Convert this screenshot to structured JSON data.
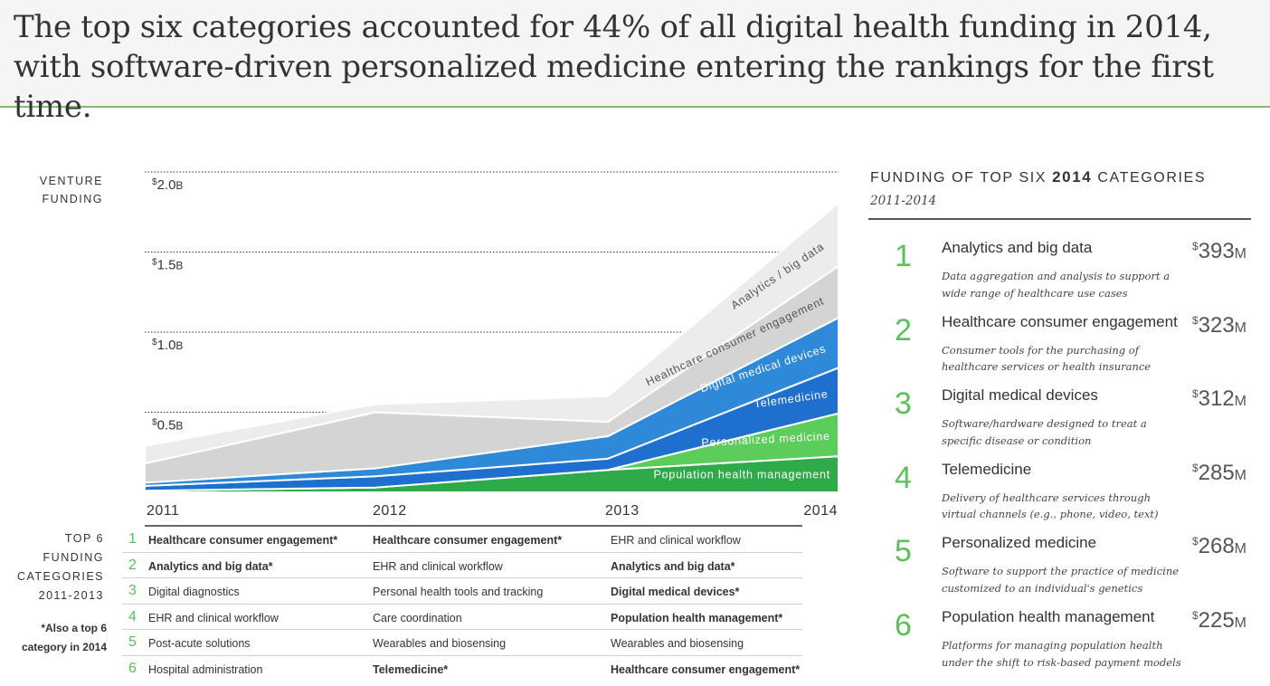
{
  "header": {
    "title": "The top six categories accounted for 44% of all digital health funding in 2014, with software-driven personalized medicine entering the rankings for the first time."
  },
  "chart_data": {
    "type": "area",
    "stacked": true,
    "yaxis_title": "VENTURE FUNDING",
    "x": [
      "2011",
      "2012",
      "2013",
      "2014"
    ],
    "ylim": [
      0,
      2.0
    ],
    "ytick_labels": [
      {
        "value": 2.0,
        "prefix": "$",
        "number": "2.0",
        "unit": "B"
      },
      {
        "value": 1.5,
        "prefix": "$",
        "number": "1.5",
        "unit": "B"
      },
      {
        "value": 1.0,
        "prefix": "$",
        "number": "1.0",
        "unit": "B"
      },
      {
        "value": 0.5,
        "prefix": "$",
        "number": "0.5",
        "unit": "B"
      }
    ],
    "grid": "dotted horizontal",
    "units": "$B",
    "series": [
      {
        "name": "Population health management",
        "color": "#2faa4a",
        "label_color": "#ffffff",
        "values": [
          0.01,
          0.03,
          0.14,
          0.225
        ]
      },
      {
        "name": "Personalized medicine",
        "color": "#5ccc5a",
        "label_color": "#ffffff",
        "values": [
          0.0,
          0.0,
          0.0,
          0.268
        ]
      },
      {
        "name": "Telemedicine",
        "color": "#1f6fce",
        "label_color": "#ffffff",
        "values": [
          0.03,
          0.07,
          0.07,
          0.285
        ]
      },
      {
        "name": "Digital medical devices",
        "color": "#2e8ad8",
        "label_color": "#ffffff",
        "values": [
          0.02,
          0.05,
          0.14,
          0.312
        ]
      },
      {
        "name": "Healthcare consumer engagement",
        "color": "#d4d4d4",
        "label_color": "#555555",
        "values": [
          0.12,
          0.35,
          0.09,
          0.323
        ]
      },
      {
        "name": "Analytics / big data",
        "color": "#ececec",
        "label_color": "#555555",
        "values": [
          0.11,
          0.05,
          0.16,
          0.393
        ]
      }
    ]
  },
  "table": {
    "side_label": [
      "TOP 6",
      "FUNDING",
      "CATEGORIES",
      "2011-2013"
    ],
    "note": [
      "*Also a top 6",
      "category in 2014"
    ],
    "rows": [
      {
        "rank": "1",
        "cells": [
          {
            "text": "Healthcare consumer engagement*",
            "bold": true
          },
          {
            "text": "Healthcare consumer engagement*",
            "bold": true
          },
          {
            "text": "EHR and clinical workflow",
            "bold": false
          }
        ]
      },
      {
        "rank": "2",
        "cells": [
          {
            "text": "Analytics and big data*",
            "bold": true
          },
          {
            "text": "EHR and clinical workflow",
            "bold": false
          },
          {
            "text": "Analytics and big data*",
            "bold": true
          }
        ]
      },
      {
        "rank": "3",
        "cells": [
          {
            "text": "Digital diagnostics",
            "bold": false
          },
          {
            "text": "Personal health tools and tracking",
            "bold": false
          },
          {
            "text": "Digital medical devices*",
            "bold": true
          }
        ]
      },
      {
        "rank": "4",
        "cells": [
          {
            "text": "EHR and clinical workflow",
            "bold": false
          },
          {
            "text": "Care coordination",
            "bold": false
          },
          {
            "text": "Population health management*",
            "bold": true
          }
        ]
      },
      {
        "rank": "5",
        "cells": [
          {
            "text": "Post-acute solutions",
            "bold": false
          },
          {
            "text": "Wearables and biosensing",
            "bold": false
          },
          {
            "text": "Wearables and biosensing",
            "bold": false
          }
        ]
      },
      {
        "rank": "6",
        "cells": [
          {
            "text": "Hospital administration",
            "bold": false
          },
          {
            "text": "Telemedicine*",
            "bold": true
          },
          {
            "text": "Healthcare consumer engagement*",
            "bold": true
          }
        ]
      }
    ]
  },
  "panel": {
    "title_pre": "FUNDING OF TOP SIX ",
    "title_year": "2014",
    "title_post": " CATEGORIES",
    "subtitle": "2011-2014",
    "accent_color": "#5cc05a",
    "items": [
      {
        "num": "1",
        "name": "Analytics and big data",
        "amount_prefix": "$",
        "amount": "393",
        "amount_unit": "M",
        "desc_lines": [
          "Data aggregation and analysis to support a",
          "wide range of healthcare use cases"
        ]
      },
      {
        "num": "2",
        "name": "Healthcare consumer engagement",
        "amount_prefix": "$",
        "amount": "323",
        "amount_unit": "M",
        "desc_lines": [
          "Consumer tools for the purchasing of",
          "healthcare services or health insurance"
        ]
      },
      {
        "num": "3",
        "name": "Digital medical devices",
        "amount_prefix": "$",
        "amount": "312",
        "amount_unit": "M",
        "desc_lines": [
          "Software/hardware designed to treat a",
          "specific disease or condition"
        ]
      },
      {
        "num": "4",
        "name": "Telemedicine",
        "amount_prefix": "$",
        "amount": "285",
        "amount_unit": "M",
        "desc_lines": [
          "Delivery of healthcare services through",
          "virtual channels (e.g., phone, video, text)"
        ]
      },
      {
        "num": "5",
        "name": "Personalized medicine",
        "amount_prefix": "$",
        "amount": "268",
        "amount_unit": "M",
        "desc_lines": [
          "Software to support the practice of medicine",
          "customized to an individual's genetics"
        ]
      },
      {
        "num": "6",
        "name": "Population health management",
        "amount_prefix": "$",
        "amount": "225",
        "amount_unit": "M",
        "desc_lines": [
          "Platforms for managing population health",
          "under the shift to risk-based payment models"
        ]
      }
    ]
  }
}
